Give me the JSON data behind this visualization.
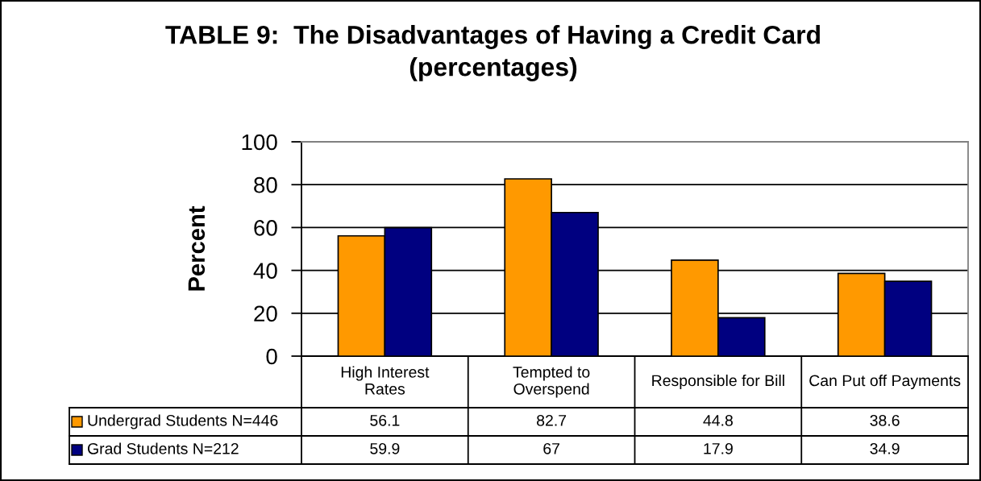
{
  "chart_data": {
    "type": "bar",
    "title": "TABLE 9:  The Disadvantages of Having a Credit Card",
    "subtitle": "(percentages)",
    "ylabel": "Percent",
    "categories": [
      "High Interest\nRates",
      "Tempted to\nOverspend",
      "Responsible for Bill",
      "Can Put off Payments"
    ],
    "series": [
      {
        "name": "Undergrad Students N=446",
        "color": "#ff9900",
        "values": [
          56.1,
          82.7,
          44.8,
          38.6
        ]
      },
      {
        "name": "Grad Students N=212",
        "color": "#000080",
        "values": [
          59.9,
          67,
          17.9,
          34.9
        ]
      }
    ],
    "ylim": [
      0,
      100
    ],
    "yticks": [
      0,
      20,
      40,
      60,
      80,
      100
    ],
    "grid": "y",
    "legend": "bottom",
    "data_labels": true
  }
}
